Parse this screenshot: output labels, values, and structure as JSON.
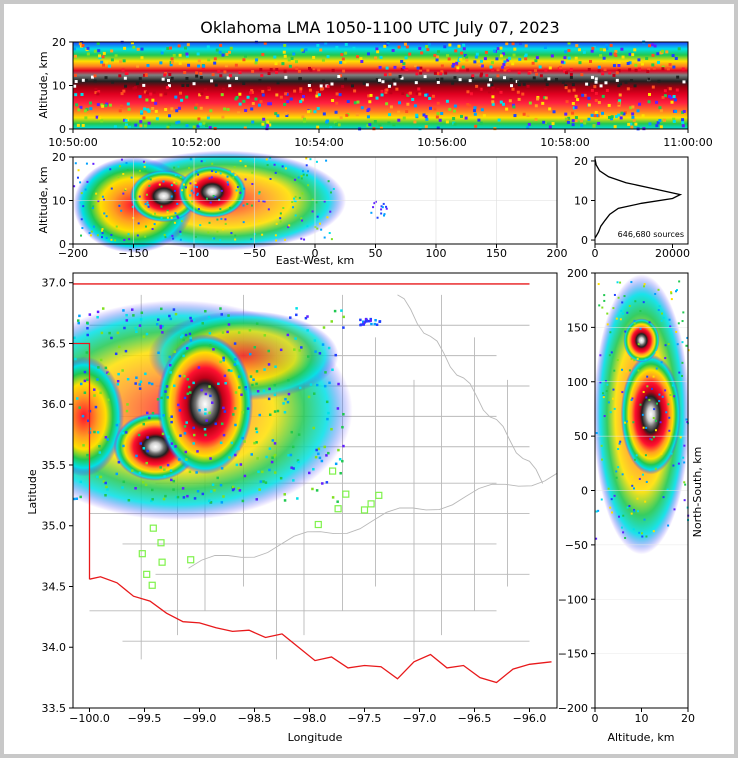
{
  "title": "Oklahoma LMA 1050-1100 UTC July 07, 2023",
  "chart_data": [
    {
      "name": "altitude-time",
      "type": "heatmap",
      "ylabel": "Altitude, km",
      "ylim": [
        0,
        20
      ],
      "yticks": [
        "0",
        "10",
        "20"
      ],
      "xticks": [
        "10:50:00",
        "10:52:00",
        "10:54:00",
        "10:56:00",
        "10:58:00",
        "11:00:00"
      ],
      "density_core_altitude_km": 11
    },
    {
      "name": "altitude-east-west",
      "type": "heatmap",
      "xlabel": "East-West, km",
      "ylabel": "Altitude, km",
      "xlim": [
        -200,
        200
      ],
      "ylim": [
        0,
        20
      ],
      "xticks": [
        "−200",
        "−150",
        "−100",
        "−50",
        "0",
        "50",
        "100",
        "150",
        "200"
      ],
      "yticks": [
        "0",
        "10",
        "20"
      ],
      "cores": [
        {
          "x_km": -125,
          "alt_km": 11
        },
        {
          "x_km": -85,
          "alt_km": 12
        }
      ]
    },
    {
      "name": "altitude-histogram",
      "type": "line",
      "xticks": [
        "0",
        "20000"
      ],
      "yticks": [
        "0",
        "10",
        "20"
      ],
      "xlim": [
        0,
        24000
      ],
      "ylim": [
        -1,
        21
      ],
      "annotation": "646,680 sources",
      "points": [
        {
          "x": 0,
          "y": 20.5
        },
        {
          "x": 300,
          "y": 19
        },
        {
          "x": 1200,
          "y": 17.5
        },
        {
          "x": 3500,
          "y": 16
        },
        {
          "x": 8000,
          "y": 14.5
        },
        {
          "x": 15000,
          "y": 13
        },
        {
          "x": 22000,
          "y": 11.5
        },
        {
          "x": 20000,
          "y": 10.5
        },
        {
          "x": 12000,
          "y": 9.3
        },
        {
          "x": 6000,
          "y": 8
        },
        {
          "x": 3800,
          "y": 6.5
        },
        {
          "x": 2600,
          "y": 5
        },
        {
          "x": 1500,
          "y": 3.5
        },
        {
          "x": 900,
          "y": 2
        },
        {
          "x": 300,
          "y": 1
        },
        {
          "x": 0,
          "y": 0.5
        }
      ]
    },
    {
      "name": "plan-view",
      "type": "heatmap",
      "xlabel": "Longitude",
      "ylabel": "Latitude",
      "xlim": [
        -100.15,
        -95.75
      ],
      "ylim": [
        33.5,
        37.08
      ],
      "xticks": [
        "−100.0",
        "−99.5",
        "−99.0",
        "−98.5",
        "−98.0",
        "−97.5",
        "−97.0",
        "−96.5",
        "−96.0"
      ],
      "yticks": [
        "33.5",
        "34.0",
        "34.5",
        "35.0",
        "35.5",
        "36.0",
        "36.5",
        "37.0"
      ],
      "cores": [
        {
          "lon": -99.4,
          "lat": 35.65
        },
        {
          "lon": -98.95,
          "lat": 36.0
        }
      ],
      "stations": [
        {
          "lon": -99.42,
          "lat": 34.98
        },
        {
          "lon": -99.35,
          "lat": 34.86
        },
        {
          "lon": -99.52,
          "lat": 34.77
        },
        {
          "lon": -99.34,
          "lat": 34.7
        },
        {
          "lon": -99.08,
          "lat": 34.72
        },
        {
          "lon": -99.48,
          "lat": 34.6
        },
        {
          "lon": -99.43,
          "lat": 34.51
        },
        {
          "lon": -97.92,
          "lat": 35.01
        },
        {
          "lon": -97.74,
          "lat": 35.14
        },
        {
          "lon": -97.79,
          "lat": 35.45
        },
        {
          "lon": -97.67,
          "lat": 35.26
        },
        {
          "lon": -97.5,
          "lat": 35.13
        },
        {
          "lon": -97.44,
          "lat": 35.18
        },
        {
          "lon": -97.37,
          "lat": 35.25
        }
      ],
      "colors": {
        "state_border": "#e8191b",
        "county_lines": "#b9b9b9",
        "stations": "#7ff24b"
      }
    },
    {
      "name": "altitude-north-south",
      "type": "heatmap",
      "xlabel": "Altitude, km",
      "ylabel": "North-South, km",
      "xlim": [
        0,
        20
      ],
      "ylim": [
        -200,
        200
      ],
      "xticks": [
        "0",
        "10",
        "20"
      ],
      "yticks": [
        "−200",
        "−150",
        "−100",
        "−50",
        "0",
        "50",
        "100",
        "150",
        "200"
      ],
      "cores": [
        {
          "alt_km": 12,
          "y_km": 70
        },
        {
          "alt_km": 10,
          "y_km": 138
        }
      ]
    }
  ]
}
